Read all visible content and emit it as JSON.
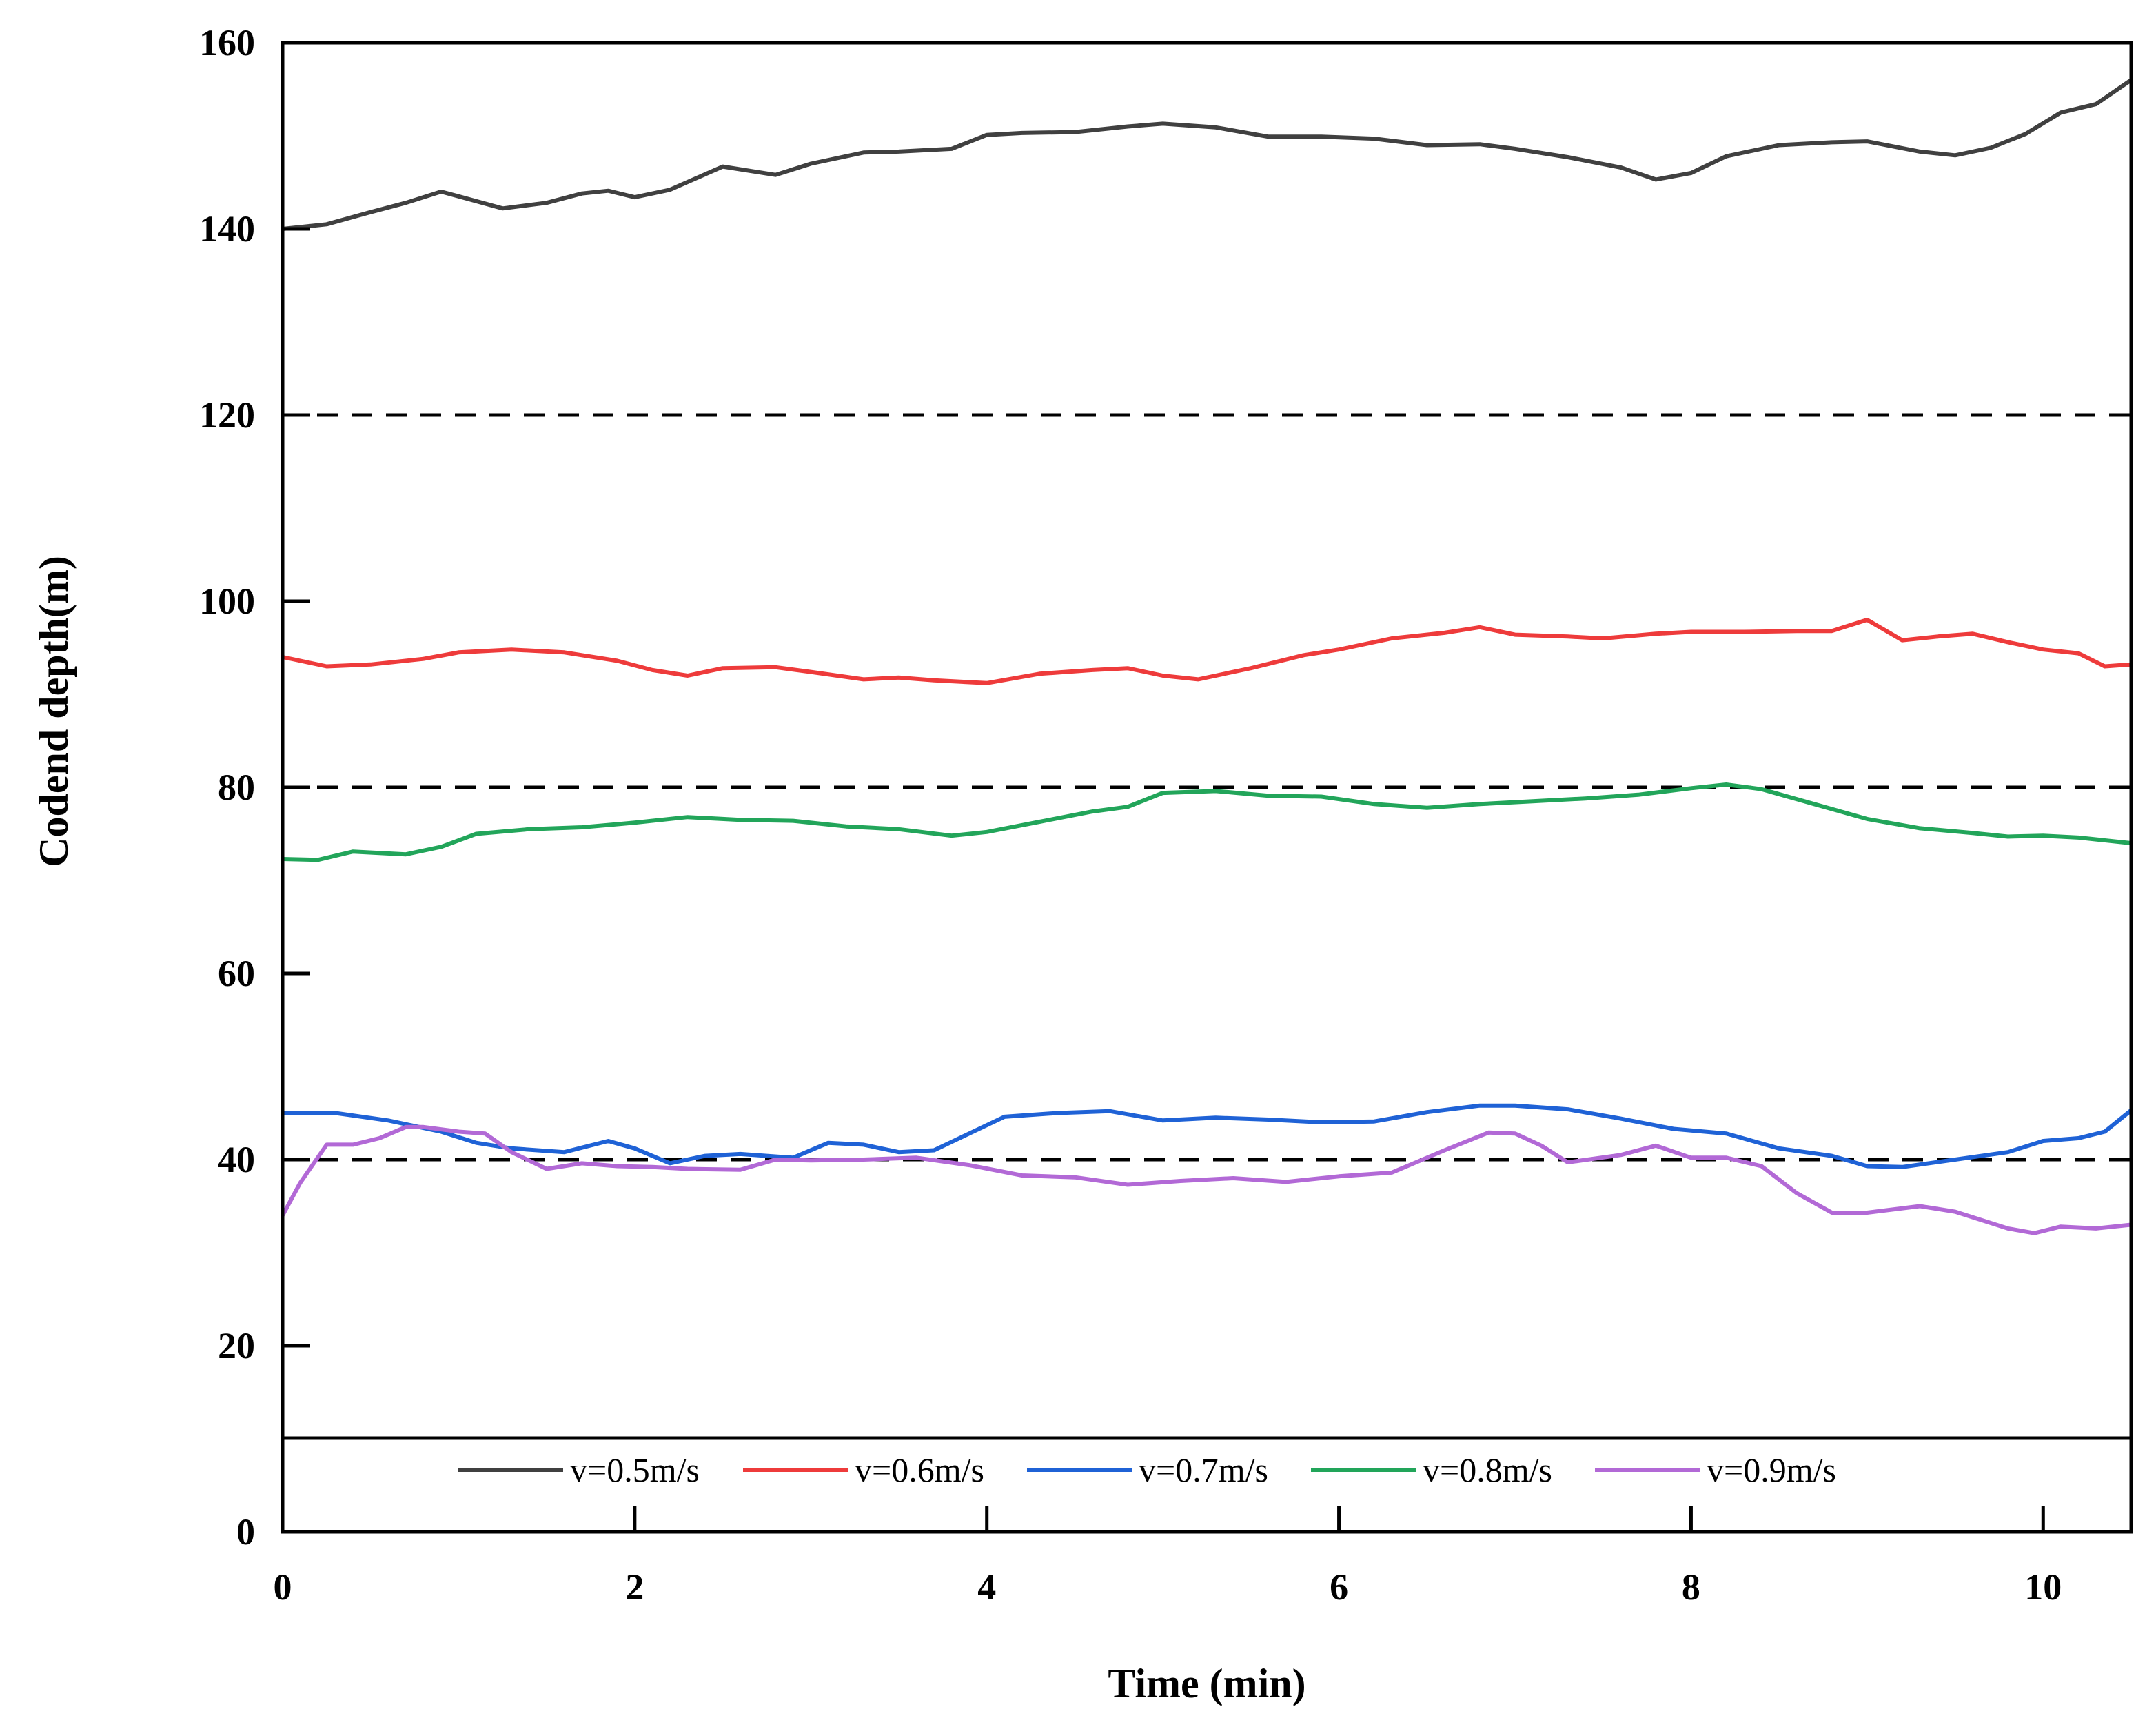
{
  "chart_data": {
    "type": "line",
    "title": "",
    "xlabel": "Time (min)",
    "ylabel": "Codend depth(m)",
    "xlim": [
      0,
      10.5
    ],
    "ylim": [
      0,
      160
    ],
    "xticks": [
      0,
      2,
      4,
      6,
      8,
      10
    ],
    "yticks": [
      0,
      20,
      40,
      60,
      80,
      100,
      120,
      140,
      160
    ],
    "grid": false,
    "reference_lines": [
      40,
      80,
      120
    ],
    "legend_position": "bottom-inside",
    "series": [
      {
        "name": "v=0.5m/s",
        "color": "#404040",
        "x": [
          0,
          0.25,
          0.5,
          0.7,
          0.9,
          1.0,
          1.25,
          1.5,
          1.7,
          1.85,
          2.0,
          2.2,
          2.5,
          2.8,
          3.0,
          3.3,
          3.5,
          3.8,
          4.0,
          4.2,
          4.5,
          4.8,
          5.0,
          5.3,
          5.6,
          5.9,
          6.2,
          6.5,
          6.8,
          7.0,
          7.3,
          7.6,
          7.8,
          8.0,
          8.2,
          8.5,
          8.8,
          9.0,
          9.3,
          9.5,
          9.7,
          9.9,
          10.1,
          10.3,
          10.5
        ],
        "y": [
          140,
          140.5,
          141.8,
          142.8,
          144,
          143.5,
          142.2,
          142.8,
          143.8,
          144.1,
          143.4,
          144.2,
          146.7,
          145.8,
          147,
          148.2,
          148.3,
          148.6,
          150.1,
          150.3,
          150.4,
          151,
          151.3,
          150.9,
          149.9,
          149.9,
          149.7,
          149,
          149.1,
          148.6,
          147.7,
          146.6,
          145.3,
          146,
          147.8,
          149,
          149.3,
          149.4,
          148.3,
          147.9,
          148.7,
          150.2,
          152.5,
          153.4,
          156
        ]
      },
      {
        "name": "v=0.6m/s",
        "color": "#ee3b3b",
        "x": [
          0,
          0.25,
          0.5,
          0.8,
          1.0,
          1.3,
          1.6,
          1.9,
          2.1,
          2.3,
          2.5,
          2.8,
          3.0,
          3.3,
          3.5,
          3.7,
          4.0,
          4.3,
          4.6,
          4.8,
          5.0,
          5.2,
          5.5,
          5.8,
          6.0,
          6.3,
          6.6,
          6.8,
          7.0,
          7.3,
          7.5,
          7.8,
          8.0,
          8.3,
          8.6,
          8.8,
          9.0,
          9.2,
          9.4,
          9.6,
          9.8,
          10.0,
          10.2,
          10.35,
          10.5
        ],
        "y": [
          94,
          93,
          93.2,
          93.8,
          94.5,
          94.8,
          94.5,
          93.6,
          92.6,
          92,
          92.8,
          92.9,
          92.4,
          91.6,
          91.8,
          91.5,
          91.2,
          92.2,
          92.6,
          92.8,
          92,
          91.6,
          92.8,
          94.2,
          94.8,
          96,
          96.6,
          97.2,
          96.4,
          96.2,
          96,
          96.5,
          96.7,
          96.7,
          96.8,
          96.8,
          98,
          95.8,
          96.2,
          96.5,
          95.6,
          94.8,
          94.4,
          93,
          93.2
        ]
      },
      {
        "name": "v=0.7m/s",
        "color": "#1f62d6",
        "x": [
          0,
          0.3,
          0.6,
          0.9,
          1.1,
          1.3,
          1.6,
          1.85,
          2.0,
          2.2,
          2.4,
          2.6,
          2.9,
          3.1,
          3.3,
          3.5,
          3.7,
          3.9,
          4.1,
          4.4,
          4.7,
          5.0,
          5.3,
          5.6,
          5.9,
          6.2,
          6.5,
          6.8,
          7.0,
          7.3,
          7.6,
          7.9,
          8.2,
          8.5,
          8.8,
          9.0,
          9.2,
          9.5,
          9.8,
          10.0,
          10.2,
          10.35,
          10.5
        ],
        "y": [
          45,
          45,
          44.2,
          43,
          41.8,
          41.2,
          40.8,
          42,
          41.2,
          39.6,
          40.4,
          40.6,
          40.2,
          41.8,
          41.6,
          40.8,
          41,
          42.8,
          44.6,
          45,
          45.2,
          44.2,
          44.5,
          44.3,
          44,
          44.1,
          45.1,
          45.8,
          45.8,
          45.4,
          44.4,
          43.3,
          42.8,
          41.2,
          40.4,
          39.3,
          39.2,
          40,
          40.8,
          42,
          42.3,
          43,
          45.3
        ]
      },
      {
        "name": "v=0.8m/s",
        "color": "#22a55a",
        "x": [
          0,
          0.2,
          0.4,
          0.7,
          0.9,
          1.1,
          1.4,
          1.7,
          2.0,
          2.3,
          2.6,
          2.9,
          3.2,
          3.5,
          3.8,
          4.0,
          4.3,
          4.6,
          4.8,
          5.0,
          5.3,
          5.6,
          5.9,
          6.2,
          6.5,
          6.8,
          7.1,
          7.4,
          7.7,
          8.0,
          8.2,
          8.4,
          8.7,
          9.0,
          9.3,
          9.6,
          9.8,
          10.0,
          10.2,
          10.5
        ],
        "y": [
          72.3,
          72.2,
          73.1,
          72.8,
          73.6,
          75,
          75.5,
          75.7,
          76.2,
          76.8,
          76.5,
          76.4,
          75.8,
          75.5,
          74.8,
          75.2,
          76.3,
          77.4,
          77.9,
          79.4,
          79.6,
          79.1,
          79,
          78.2,
          77.8,
          78.2,
          78.5,
          78.8,
          79.2,
          79.9,
          80.3,
          79.8,
          78.2,
          76.6,
          75.6,
          75.1,
          74.7,
          74.8,
          74.6,
          74
        ]
      },
      {
        "name": "v=0.9m/s",
        "color": "#b269d6",
        "x": [
          0,
          0.1,
          0.25,
          0.4,
          0.55,
          0.7,
          0.8,
          1.0,
          1.15,
          1.3,
          1.5,
          1.7,
          1.9,
          2.1,
          2.3,
          2.6,
          2.8,
          3.0,
          3.3,
          3.6,
          3.9,
          4.2,
          4.5,
          4.8,
          5.1,
          5.4,
          5.7,
          6.0,
          6.3,
          6.6,
          6.85,
          7.0,
          7.15,
          7.3,
          7.6,
          7.8,
          8.0,
          8.2,
          8.4,
          8.6,
          8.8,
          9.0,
          9.3,
          9.5,
          9.8,
          9.95,
          10.1,
          10.3,
          10.5
        ],
        "y": [
          34,
          37.5,
          41.6,
          41.6,
          42.3,
          43.5,
          43.5,
          43,
          42.8,
          40.8,
          39,
          39.6,
          39.3,
          39.2,
          39,
          38.9,
          40,
          39.9,
          40,
          40.2,
          39.4,
          38.3,
          38.1,
          37.3,
          37.7,
          38,
          37.6,
          38.2,
          38.6,
          41,
          42.9,
          42.8,
          41.5,
          39.7,
          40.5,
          41.5,
          40.2,
          40.2,
          39.3,
          36.4,
          34.3,
          34.3,
          35,
          34.4,
          32.6,
          32.1,
          32.8,
          32.6,
          33
        ]
      }
    ]
  }
}
